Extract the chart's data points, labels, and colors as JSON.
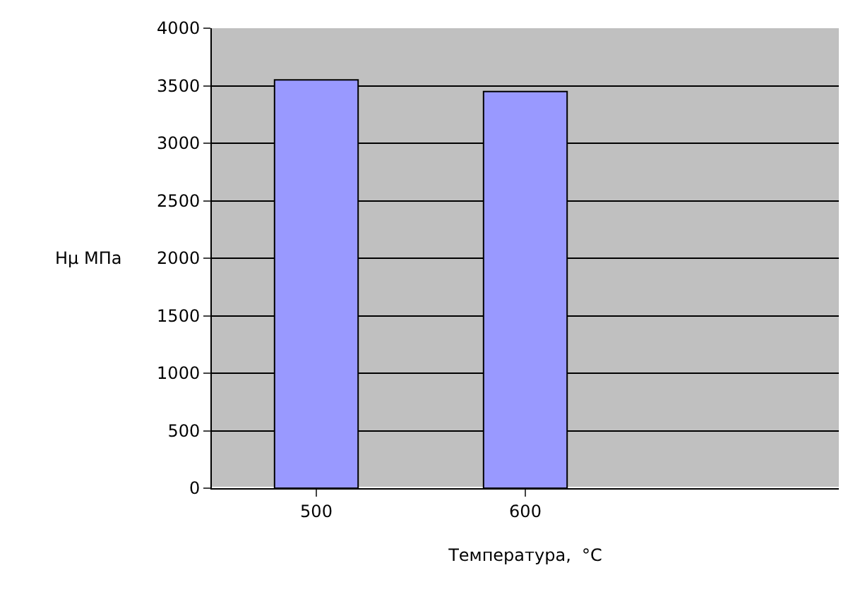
{
  "chart_data": {
    "type": "bar",
    "xlabel": "Температура,  °C",
    "ylabel": "Hμ MПa",
    "categories": [
      "500",
      "600",
      null
    ],
    "series": [
      {
        "color": "#9999ff",
        "values": [
          3550,
          3450,
          null
        ]
      }
    ],
    "ylim": [
      0,
      4000
    ],
    "yticks": [
      0,
      500,
      1000,
      1500,
      2000,
      2500,
      3000,
      3500,
      4000
    ],
    "grid": "y"
  }
}
